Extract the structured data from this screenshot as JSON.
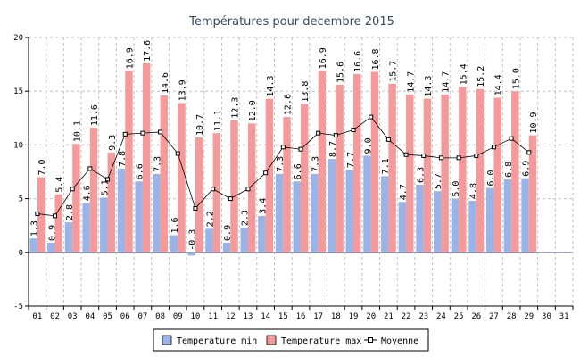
{
  "chart_data": {
    "type": "bar",
    "title": "Températures pour decembre 2015",
    "categories": [
      "01",
      "02",
      "03",
      "04",
      "05",
      "06",
      "07",
      "08",
      "09",
      "10",
      "11",
      "12",
      "13",
      "14",
      "15",
      "16",
      "17",
      "18",
      "19",
      "20",
      "21",
      "22",
      "23",
      "24",
      "25",
      "26",
      "27",
      "28",
      "29",
      "30",
      "31"
    ],
    "ylim": [
      -5,
      20
    ],
    "yticks": [
      -5,
      0,
      5,
      10,
      15,
      20
    ],
    "grid": true,
    "legend_position": "bottom",
    "colors": {
      "min": "#9ab4e8",
      "max": "#f59a9a",
      "mean_line": "#000000",
      "grid": "#c0c0c0",
      "title": "#34495e"
    },
    "series": [
      {
        "name": "Temperature min",
        "type": "bar",
        "values": [
          1.3,
          0.9,
          2.8,
          4.6,
          5.1,
          7.8,
          6.6,
          7.3,
          1.6,
          -0.3,
          2.2,
          0.9,
          2.3,
          3.4,
          7.3,
          6.6,
          7.3,
          8.7,
          7.7,
          9.0,
          7.1,
          4.7,
          6.3,
          5.7,
          5.0,
          4.8,
          6.0,
          6.8,
          6.9,
          null,
          null
        ]
      },
      {
        "name": "Temperature max",
        "type": "bar",
        "values": [
          7.0,
          5.4,
          10.1,
          11.6,
          9.3,
          16.9,
          17.6,
          14.6,
          13.9,
          10.7,
          11.1,
          12.3,
          12.0,
          14.3,
          12.6,
          13.8,
          16.9,
          15.6,
          16.6,
          16.8,
          15.7,
          14.7,
          14.3,
          14.7,
          15.4,
          15.2,
          14.4,
          15.0,
          10.9,
          null,
          null
        ]
      },
      {
        "name": "Moyenne",
        "type": "line",
        "values": [
          3.6,
          3.4,
          5.9,
          7.8,
          6.8,
          11.0,
          11.1,
          11.2,
          9.2,
          4.1,
          5.9,
          5.0,
          5.9,
          7.4,
          9.8,
          9.6,
          11.1,
          10.9,
          11.4,
          12.6,
          10.5,
          9.1,
          9.0,
          8.8,
          8.8,
          9.0,
          9.8,
          10.6,
          9.3,
          null,
          null
        ]
      }
    ]
  }
}
